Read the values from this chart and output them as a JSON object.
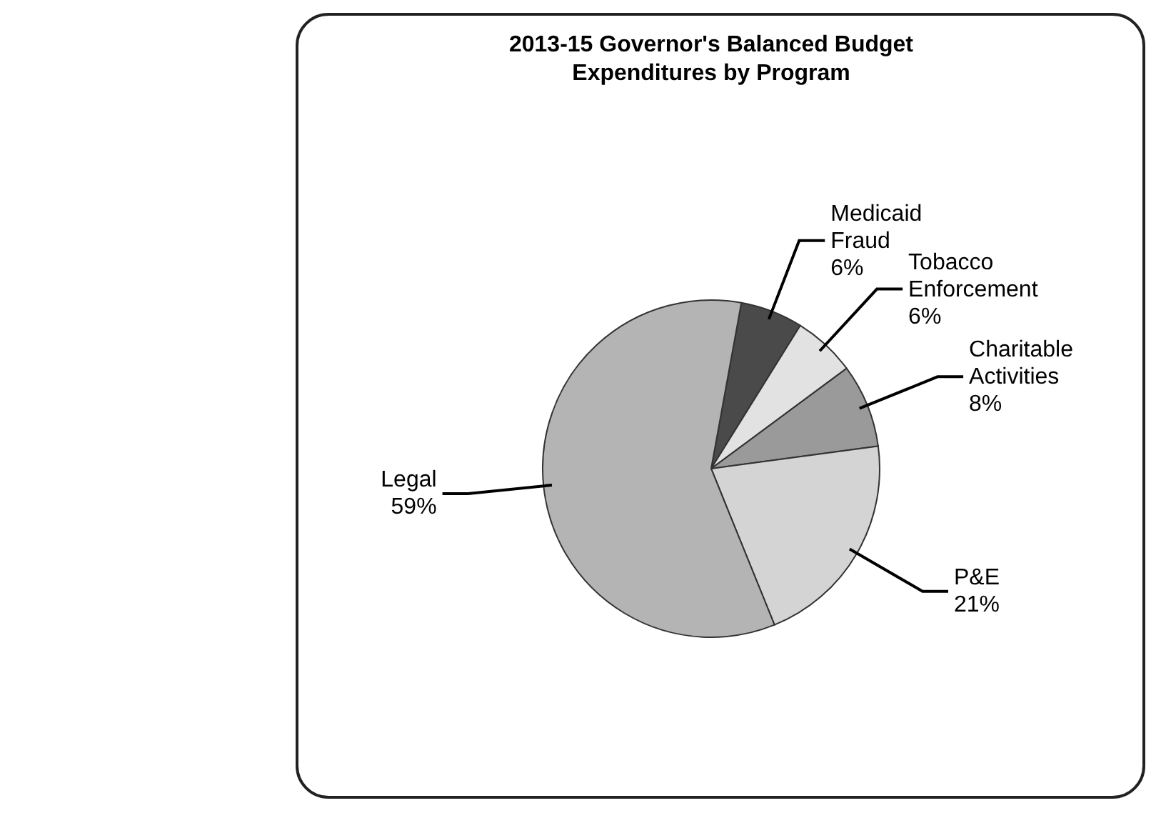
{
  "chart_data": {
    "type": "pie",
    "title": "2013-15 Governor's Balanced Budget Expenditures by Program",
    "categories": [
      "Medicaid Fraud",
      "Tobacco Enforcement",
      "Charitable Activities",
      "P&E",
      "Legal"
    ],
    "values": [
      6,
      6,
      8,
      21,
      59
    ],
    "value_labels": [
      "6%",
      "6%",
      "8%",
      "21%",
      "59%"
    ],
    "colors": [
      "#4a4a4a",
      "#e2e2e2",
      "#9a9a9a",
      "#d4d4d4",
      "#b4b4b4"
    ]
  }
}
